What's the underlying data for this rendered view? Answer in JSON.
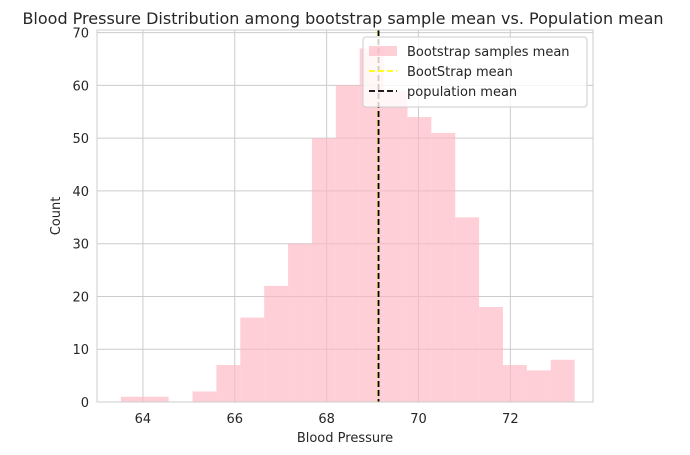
{
  "chart_data": {
    "type": "bar",
    "title": "Blood Pressure Distribution among bootstrap sample mean vs. Population mean",
    "xlabel": "Blood Pressure",
    "ylabel": "Count",
    "xlim": [
      63.0,
      73.8
    ],
    "ylim": [
      0,
      70.5
    ],
    "x_ticks": [
      64,
      66,
      68,
      70,
      72
    ],
    "y_ticks": [
      0,
      10,
      20,
      30,
      40,
      50,
      60,
      70
    ],
    "grid": true,
    "legend_position": "top-right",
    "histogram": {
      "bin_edges": [
        63.52,
        64.04,
        64.56,
        65.08,
        65.6,
        66.12,
        66.64,
        67.16,
        67.68,
        68.2,
        68.72,
        69.24,
        69.76,
        70.28,
        70.8,
        71.32,
        71.84,
        72.36,
        72.88,
        73.4
      ],
      "counts": [
        1,
        1,
        0,
        2,
        7,
        16,
        22,
        30,
        50,
        60,
        67,
        59,
        54,
        51,
        35,
        18,
        7,
        6,
        8
      ],
      "color": "#ffb6c1",
      "alpha": 0.65
    },
    "vlines": [
      {
        "name": "BootStrap mean",
        "x": 69.12,
        "color": "#ffff00",
        "style": "dashed"
      },
      {
        "name": "population mean",
        "x": 69.13,
        "color": "#000000",
        "style": "dashed"
      }
    ],
    "legend": [
      {
        "label": "Bootstrap samples mean",
        "kind": "patch",
        "color": "#ffb6c1"
      },
      {
        "label": "BootStrap mean",
        "kind": "line",
        "color": "#ffff00"
      },
      {
        "label": "population mean",
        "kind": "line",
        "color": "#000000"
      }
    ]
  }
}
